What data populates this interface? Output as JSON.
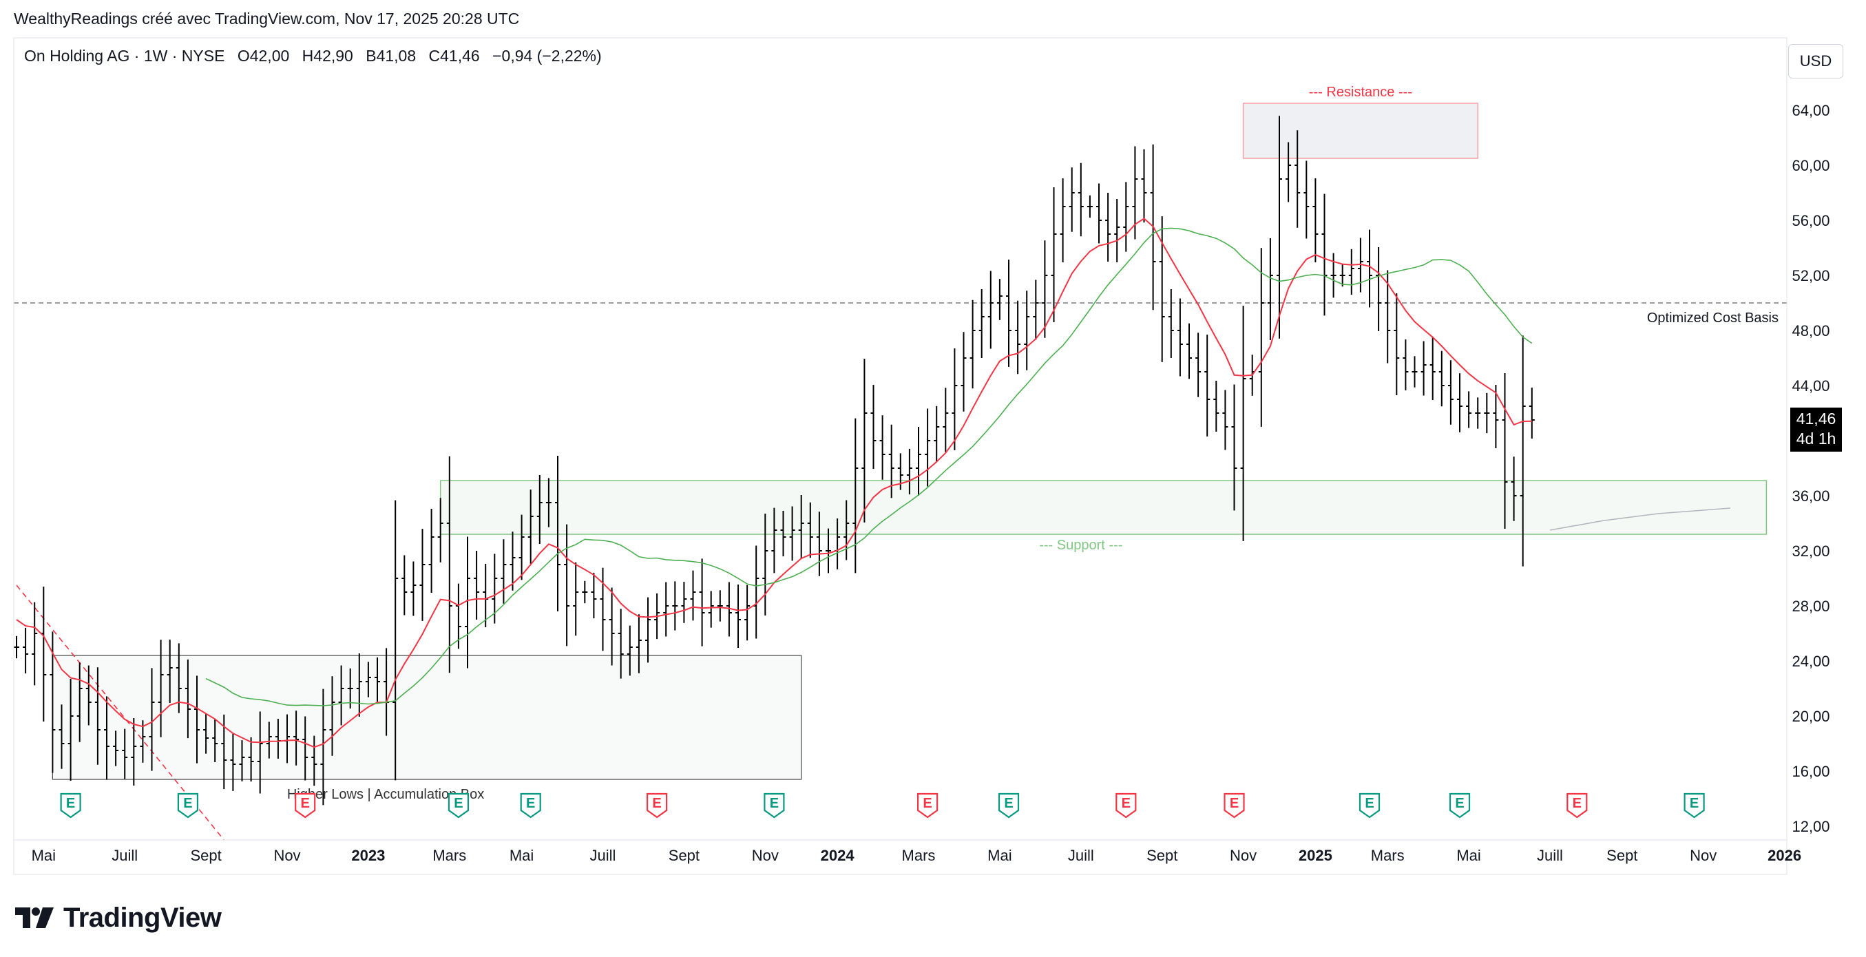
{
  "header": {
    "credit": "WealthyReadings créé avec TradingView.com, Nov 17, 2025 20:28 UTC"
  },
  "legend": {
    "symbol": "On Holding AG · 1W · NYSE",
    "open": "O42,00",
    "high": "H42,90",
    "low": "B41,08",
    "close": "C41,46",
    "change": "−0,94 (−2,22%)"
  },
  "currency_button": "USD",
  "price_tag": {
    "price": "41,46",
    "countdown": "4d 1h"
  },
  "brand": "TradingView",
  "colors": {
    "candle": "#000000",
    "ema_fast": "#f23645",
    "sma_slow": "#4caf50",
    "long_ma": "#b2b5be",
    "resistance_border": "#f7a1a8",
    "support_border": "#81c784",
    "earnings_green": "#089981",
    "earnings_red": "#f23645",
    "cost_basis_line": "#787b86"
  },
  "chart_data": {
    "type": "ohlc",
    "interval": "1W",
    "ylim": [
      11,
      67
    ],
    "y_ticks": [
      "12,00",
      "16,00",
      "20,00",
      "24,00",
      "28,00",
      "32,00",
      "36,00",
      "40,00",
      "44,00",
      "48,00",
      "52,00",
      "56,00",
      "60,00",
      "64,00"
    ],
    "x_ticks": [
      {
        "label": "Mai",
        "week": 3,
        "bold": false
      },
      {
        "label": "Juill",
        "week": 12,
        "bold": false
      },
      {
        "label": "Sept",
        "week": 21,
        "bold": false
      },
      {
        "label": "Nov",
        "week": 30,
        "bold": false
      },
      {
        "label": "2023",
        "week": 39,
        "bold": true
      },
      {
        "label": "Mars",
        "week": 48,
        "bold": false
      },
      {
        "label": "Mai",
        "week": 56,
        "bold": false
      },
      {
        "label": "Juill",
        "week": 65,
        "bold": false
      },
      {
        "label": "Sept",
        "week": 74,
        "bold": false
      },
      {
        "label": "Nov",
        "week": 83,
        "bold": false
      },
      {
        "label": "2024",
        "week": 91,
        "bold": true
      },
      {
        "label": "Mars",
        "week": 100,
        "bold": false
      },
      {
        "label": "Mai",
        "week": 109,
        "bold": false
      },
      {
        "label": "Juill",
        "week": 118,
        "bold": false
      },
      {
        "label": "Sept",
        "week": 127,
        "bold": false
      },
      {
        "label": "Nov",
        "week": 136,
        "bold": false
      },
      {
        "label": "2025",
        "week": 144,
        "bold": true
      },
      {
        "label": "Mars",
        "week": 152,
        "bold": false
      },
      {
        "label": "Mai",
        "week": 161,
        "bold": false
      },
      {
        "label": "Juill",
        "week": 170,
        "bold": false
      },
      {
        "label": "Sept",
        "week": 178,
        "bold": false
      },
      {
        "label": "Nov",
        "week": 187,
        "bold": false
      },
      {
        "label": "2026",
        "week": 196,
        "bold": true
      }
    ],
    "closes": [
      25,
      24.5,
      26,
      23,
      19,
      18,
      20,
      22,
      21,
      19,
      17.8,
      17.5,
      17,
      17.8,
      18.5,
      21,
      23,
      23.5,
      22,
      20.5,
      19,
      18.4,
      18,
      16.8,
      16.5,
      17,
      16.7,
      18,
      18.5,
      18.2,
      18.5,
      18.3,
      17,
      16.5,
      19,
      21,
      22,
      22,
      22.5,
      22.8,
      22.5,
      21,
      30,
      29,
      29.5,
      31,
      33,
      34,
      28,
      26.5,
      30,
      29,
      28.5,
      30,
      31,
      31.5,
      33,
      34.5,
      35.5,
      35.5,
      31,
      28,
      29,
      29,
      28.5,
      27,
      26,
      24.5,
      25,
      25.5,
      27,
      27.5,
      28,
      28,
      28.5,
      29,
      27.5,
      28,
      28,
      27.5,
      27,
      28,
      30,
      32,
      33.5,
      33,
      33.5,
      34,
      33,
      32,
      32,
      33,
      34,
      38,
      42,
      40,
      39,
      38,
      37.5,
      38,
      39,
      40,
      41,
      42,
      44,
      46,
      48,
      49,
      50,
      50.5,
      48,
      47,
      49,
      50,
      52,
      55,
      57,
      58,
      57,
      57,
      56,
      55,
      55.5,
      57,
      59,
      58,
      53,
      49,
      48,
      47,
      46,
      45,
      43,
      42,
      41,
      38,
      44.5,
      45,
      50,
      52,
      59,
      60,
      58,
      57,
      55,
      52,
      52,
      52,
      52.5,
      53,
      52,
      50,
      48,
      46,
      45,
      45,
      45.5,
      45,
      44,
      43,
      42.5,
      42,
      42,
      42,
      41.5,
      37,
      36,
      42.5,
      41.5
    ],
    "ema_fast": {
      "name": "",
      "start_week": 0
    },
    "sma_slow": {
      "name": "",
      "start_week": 21
    },
    "long_ma_points": [
      [
        170,
        33.5
      ],
      [
        176,
        34.2
      ],
      [
        182,
        34.7
      ],
      [
        188,
        35
      ],
      [
        190,
        35.1
      ]
    ],
    "annotations": {
      "resistance": {
        "label": "--- Resistance ---",
        "y_low": 60.5,
        "y_high": 64.5,
        "week_start": 136,
        "week_end": 162
      },
      "support": {
        "label": "--- Support ---",
        "y_low": 33.2,
        "y_high": 37.1,
        "week_start": 47,
        "week_end": 194
      },
      "accumulation": {
        "label": "Higher Lows | Accumulation Box",
        "y_low": 15.4,
        "y_high": 24.4,
        "week_start": 4,
        "week_end": 87
      },
      "cost_basis": {
        "label": "Optimized Cost Basis",
        "y": 50
      },
      "trendline": {
        "from": [
          0,
          29.5
        ],
        "to": [
          23,
          11
        ]
      }
    },
    "earnings": [
      {
        "week": 6,
        "label": "E",
        "color": "green"
      },
      {
        "week": 19,
        "label": "E",
        "color": "green"
      },
      {
        "week": 32,
        "label": "E",
        "color": "red"
      },
      {
        "week": 49,
        "label": "E",
        "color": "green"
      },
      {
        "week": 57,
        "label": "E",
        "color": "green"
      },
      {
        "week": 71,
        "label": "E",
        "color": "red"
      },
      {
        "week": 84,
        "label": "E",
        "color": "green"
      },
      {
        "week": 101,
        "label": "E",
        "color": "red"
      },
      {
        "week": 110,
        "label": "E",
        "color": "green"
      },
      {
        "week": 123,
        "label": "E",
        "color": "red"
      },
      {
        "week": 135,
        "label": "E",
        "color": "red"
      },
      {
        "week": 150,
        "label": "E",
        "color": "green"
      },
      {
        "week": 160,
        "label": "E",
        "color": "green"
      },
      {
        "week": 173,
        "label": "E",
        "color": "red"
      },
      {
        "week": 186,
        "label": "E",
        "color": "green"
      }
    ]
  }
}
